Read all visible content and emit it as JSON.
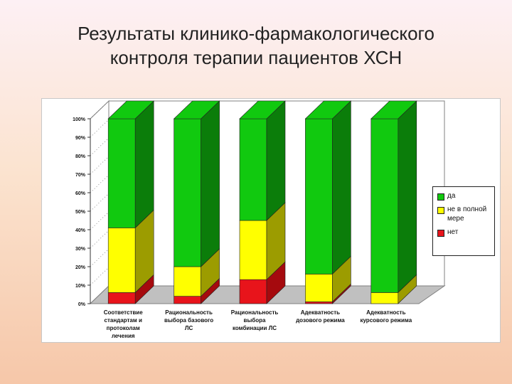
{
  "slide": {
    "title_line1": "Результаты клинико-фармакологического",
    "title_line2": "контроля терапии пациентов ХСН"
  },
  "chart_data": {
    "type": "bar",
    "stacked": true,
    "percent_stacked": true,
    "three_d": true,
    "categories": [
      [
        "Соответствие",
        "стандартам и",
        "протоколам",
        "лечения"
      ],
      [
        "Рациональность",
        "выбора базового",
        "ЛС"
      ],
      [
        "Рациональность",
        "выбора",
        "комбинации ЛС"
      ],
      [
        "Адекватность",
        "дозового режима"
      ],
      [
        "Адекватность",
        "курсового режима"
      ]
    ],
    "series": [
      {
        "name": "нет",
        "color": "#e8141b",
        "side_color": "#a50a0e",
        "values": [
          6,
          4,
          13,
          1,
          0
        ]
      },
      {
        "name": "не в полной мере",
        "color": "#ffff00",
        "side_color": "#9c9c00",
        "values": [
          35,
          16,
          32,
          15,
          6
        ]
      },
      {
        "name": "да",
        "color": "#11c90f",
        "side_color": "#0b7d0a",
        "values": [
          59,
          80,
          55,
          84,
          94
        ]
      }
    ],
    "legend_order": [
      2,
      1,
      0
    ],
    "y_ticks": [
      "0%",
      "10%",
      "20%",
      "30%",
      "40%",
      "50%",
      "60%",
      "70%",
      "80%",
      "90%",
      "100%"
    ],
    "ylim": [
      0,
      100
    ],
    "grid": true,
    "legend_position": "right",
    "wall_color": "#ffffff",
    "floor_color": "#c0c0c0"
  }
}
